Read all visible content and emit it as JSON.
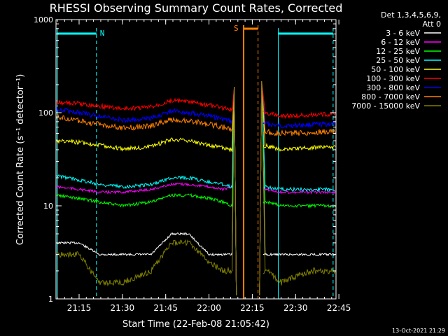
{
  "chart_data": {
    "type": "line",
    "title": "RHESSI Observing Summary Count Rates, Corrected",
    "xlabel": "Start Time (22-Feb-08 21:05:42)",
    "ylabel": "Corrected Count Rate (s⁻¹ detector⁻¹)",
    "yscale": "log",
    "ylim": [
      1,
      1000
    ],
    "xlim": [
      "21:07",
      "22:44"
    ],
    "xticks": [
      "21:15",
      "21:30",
      "21:45",
      "22:00",
      "22:15",
      "22:30",
      "22:45"
    ],
    "yticks": [
      "1",
      "10",
      "100",
      "1000"
    ],
    "legend_header": [
      "Det 1,3,4,5,6,9,",
      "Att 0"
    ],
    "legend_position": "right",
    "series": [
      {
        "name": "3 - 6 keV",
        "color": "#ffffff",
        "x": [
          "21:07",
          "21:15",
          "21:22",
          "21:30",
          "21:40",
          "21:47",
          "21:53",
          "22:00",
          "22:05",
          "22:08",
          "22:20",
          "22:25",
          "22:35",
          "22:44"
        ],
        "y": [
          4,
          4,
          3,
          3,
          3,
          5,
          5,
          3,
          3,
          3,
          3,
          3,
          3,
          3
        ]
      },
      {
        "name": "6 - 12 keV",
        "color": "#ff00ff",
        "x": [
          "21:07",
          "21:15",
          "21:22",
          "21:30",
          "21:40",
          "21:47",
          "21:53",
          "22:00",
          "22:05",
          "22:08",
          "22:20",
          "22:25",
          "22:35",
          "22:44"
        ],
        "y": [
          16,
          15,
          14,
          14,
          15,
          17,
          17,
          16,
          15,
          16,
          15,
          14,
          14,
          14
        ]
      },
      {
        "name": "12 - 25 keV",
        "color": "#00ff00",
        "x": [
          "21:07",
          "21:15",
          "21:22",
          "21:30",
          "21:40",
          "21:47",
          "21:53",
          "22:00",
          "22:05",
          "22:08",
          "22:20",
          "22:25",
          "22:35",
          "22:44"
        ],
        "y": [
          13,
          12,
          11,
          10,
          11,
          13,
          13,
          12,
          11,
          10,
          11,
          10,
          10,
          10
        ]
      },
      {
        "name": "25 - 50 keV",
        "color": "#00ffff",
        "x": [
          "21:07",
          "21:15",
          "21:22",
          "21:30",
          "21:40",
          "21:47",
          "21:53",
          "22:00",
          "22:05",
          "22:08",
          "22:20",
          "22:25",
          "22:35",
          "22:44"
        ],
        "y": [
          21,
          19,
          17,
          16,
          17,
          20,
          20,
          18,
          17,
          16,
          16,
          15,
          15,
          15
        ]
      },
      {
        "name": "50 - 100 keV",
        "color": "#ffff00",
        "x": [
          "21:07",
          "21:15",
          "21:22",
          "21:30",
          "21:40",
          "21:47",
          "21:53",
          "22:00",
          "22:05",
          "22:08",
          "22:20",
          "22:25",
          "22:35",
          "22:44"
        ],
        "y": [
          50,
          48,
          45,
          41,
          43,
          52,
          50,
          45,
          42,
          40,
          44,
          40,
          42,
          43
        ]
      },
      {
        "name": "100 - 300 keV",
        "color": "#ff0000",
        "x": [
          "21:07",
          "21:15",
          "21:22",
          "21:30",
          "21:40",
          "21:47",
          "21:53",
          "22:00",
          "22:05",
          "22:08",
          "22:20",
          "22:25",
          "22:35",
          "22:44"
        ],
        "y": [
          130,
          125,
          118,
          110,
          115,
          135,
          130,
          120,
          112,
          108,
          100,
          92,
          94,
          97
        ]
      },
      {
        "name": "300 - 800 keV",
        "color": "#0000ff",
        "x": [
          "21:07",
          "21:15",
          "21:22",
          "21:30",
          "21:40",
          "21:47",
          "21:53",
          "22:00",
          "22:05",
          "22:08",
          "22:20",
          "22:25",
          "22:35",
          "22:44"
        ],
        "y": [
          110,
          100,
          92,
          83,
          88,
          105,
          100,
          92,
          85,
          80,
          76,
          72,
          74,
          76
        ]
      },
      {
        "name": "800 - 7000 keV",
        "color": "#ff8000",
        "x": [
          "21:07",
          "21:15",
          "21:22",
          "21:30",
          "21:40",
          "21:47",
          "21:53",
          "22:00",
          "22:05",
          "22:08",
          "22:20",
          "22:25",
          "22:35",
          "22:44"
        ],
        "y": [
          90,
          82,
          75,
          68,
          72,
          85,
          82,
          75,
          70,
          66,
          62,
          60,
          61,
          63
        ]
      },
      {
        "name": "7000 - 15000 keV",
        "color": "#808000",
        "x": [
          "21:07",
          "21:15",
          "21:22",
          "21:30",
          "21:40",
          "21:47",
          "21:53",
          "22:00",
          "22:05",
          "22:08",
          "22:20",
          "22:25",
          "22:35",
          "22:44"
        ],
        "y": [
          3,
          3,
          1.5,
          1.5,
          2,
          4,
          4,
          2.5,
          2,
          2,
          2,
          1.5,
          2,
          2
        ]
      }
    ],
    "annotations": [
      {
        "text": "N",
        "color": "#00ffff",
        "at": "21:21"
      },
      {
        "text": "S",
        "color": "#ff8000",
        "at": "22:11"
      }
    ]
  },
  "footer_timestamp": "13-Oct-2021 21:29"
}
